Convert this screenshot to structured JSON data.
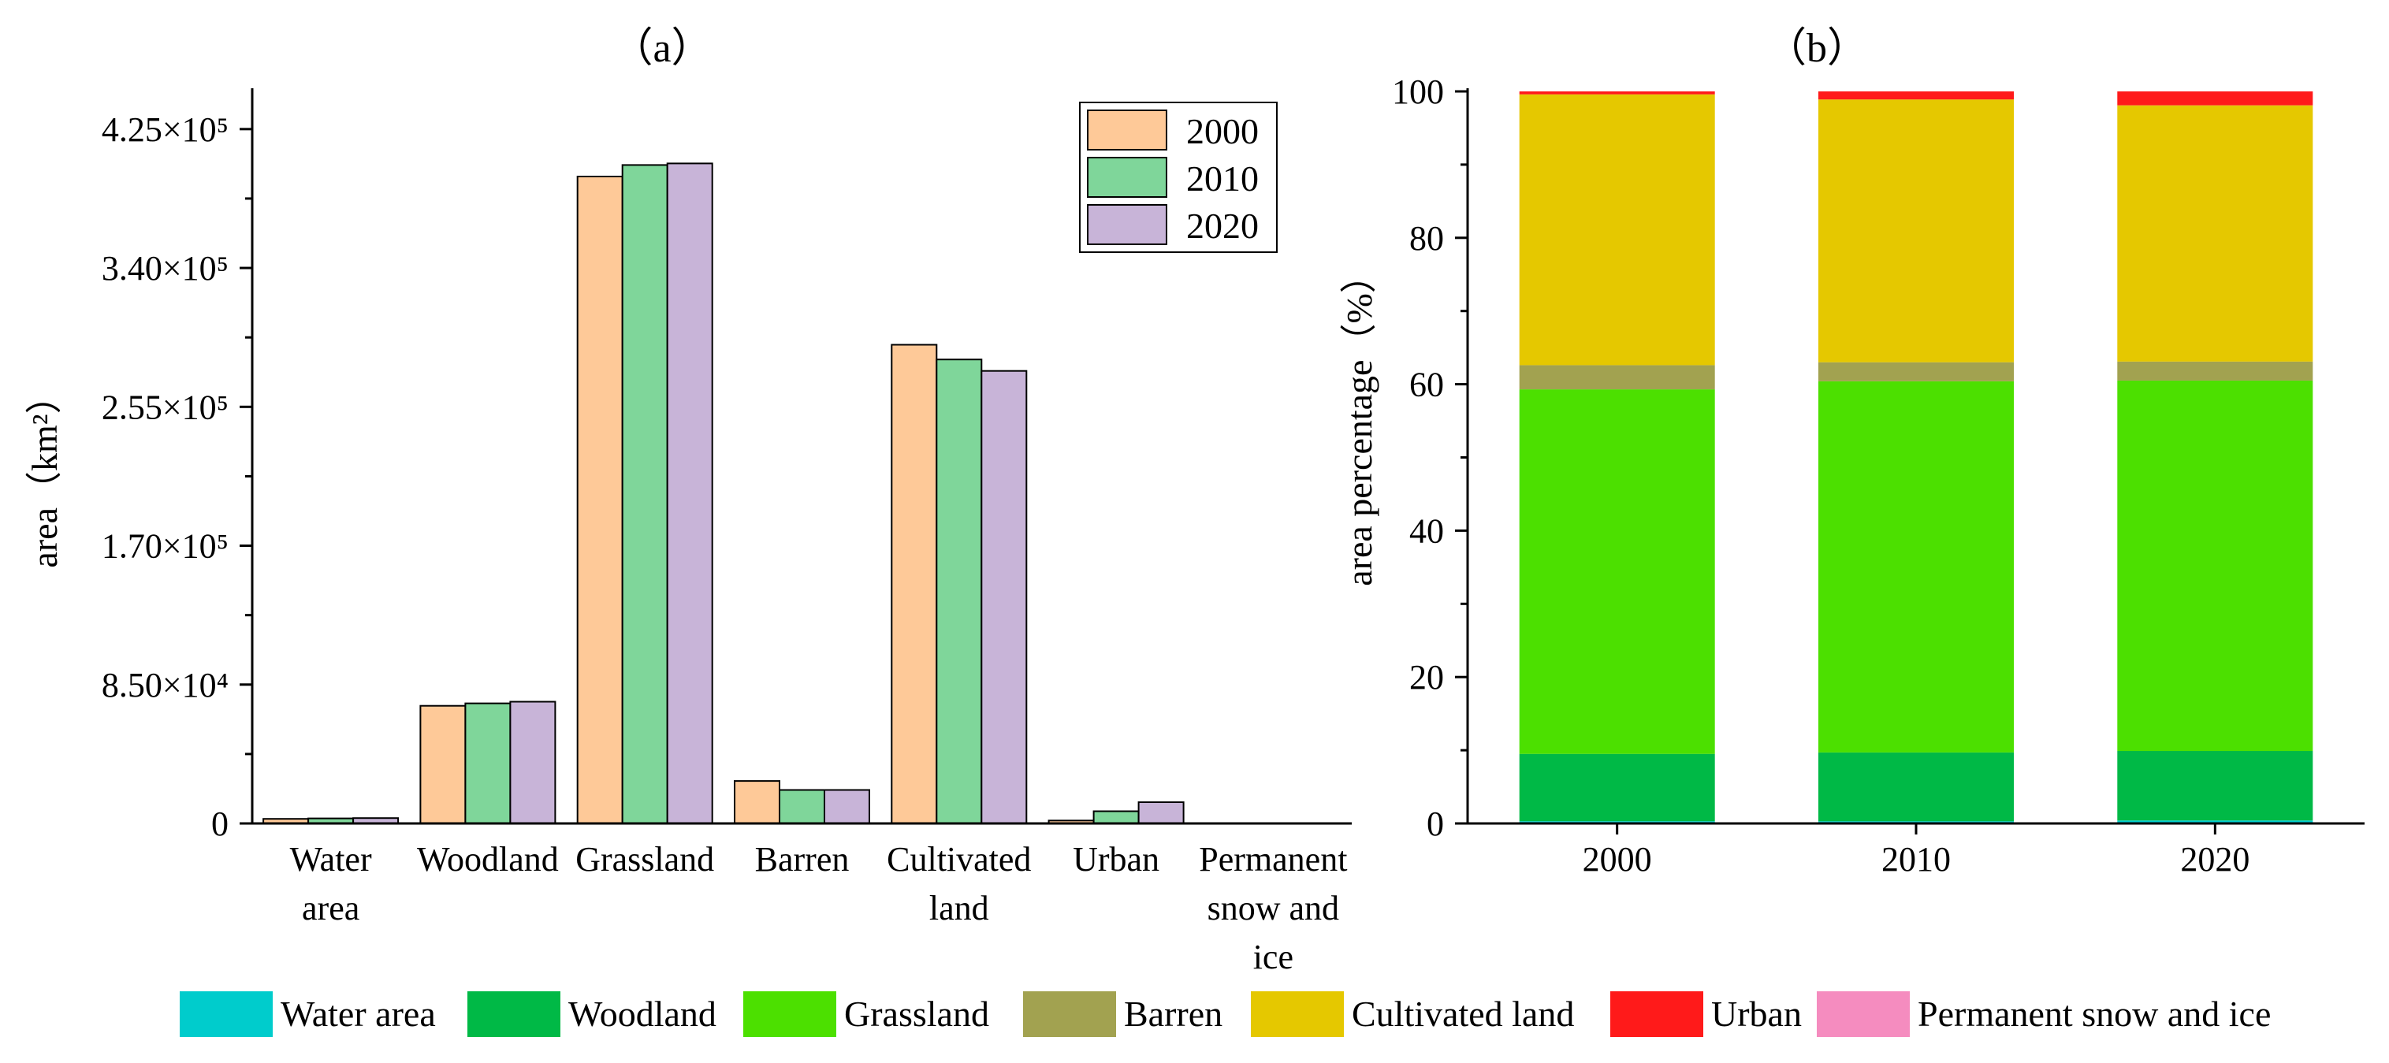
{
  "chart_data": [
    {
      "type": "bar",
      "title": "（a）",
      "xlabel": "",
      "ylabel": "area（km²）",
      "ylim": [
        0,
        450000
      ],
      "yticks": [
        0,
        85000,
        170000,
        255000,
        340000,
        425000
      ],
      "ytick_labels": [
        "0",
        "8.50×10⁴",
        "1.70×10⁵",
        "2.55×10⁵",
        "3.40×10⁵",
        "4.25×10⁵"
      ],
      "categories": [
        "Water area",
        "Woodland",
        "Grassland",
        "Barren",
        "Cultivated land",
        "Urban",
        "Permanent snow and ice"
      ],
      "category_lines": [
        [
          "Water",
          "area"
        ],
        [
          "Woodland"
        ],
        [
          "Grassland"
        ],
        [
          "Barren"
        ],
        [
          "Cultivated",
          "land"
        ],
        [
          "Urban"
        ],
        [
          "Permanent",
          "snow and",
          "ice"
        ]
      ],
      "legend_position": "top-right",
      "series": [
        {
          "name": "2000",
          "color": "#FEC998",
          "values": [
            2800,
            72000,
            396000,
            26000,
            293000,
            1800,
            200
          ]
        },
        {
          "name": "2010",
          "color": "#7FD69A",
          "values": [
            3100,
            73500,
            403000,
            20500,
            284000,
            7500,
            200
          ]
        },
        {
          "name": "2020",
          "color": "#C8B4D8",
          "values": [
            3300,
            74500,
            404000,
            20500,
            277000,
            13000,
            200
          ]
        }
      ]
    },
    {
      "type": "stacked-bar",
      "title": "（b）",
      "xlabel": "",
      "ylabel": "area percentage（%）",
      "ylim": [
        0,
        100
      ],
      "yticks": [
        0,
        20,
        40,
        60,
        80,
        100
      ],
      "ytick_labels": [
        "0",
        "20",
        "40",
        "60",
        "80",
        "100"
      ],
      "categories": [
        "2000",
        "2010",
        "2020"
      ],
      "series": [
        {
          "name": "Water area",
          "color": "#00CCCC",
          "values": [
            0.3,
            0.3,
            0.4
          ]
        },
        {
          "name": "Woodland",
          "color": "#00B946",
          "values": [
            9.2,
            9.4,
            9.5
          ]
        },
        {
          "name": "Grassland",
          "color": "#4CE000",
          "values": [
            49.8,
            50.7,
            50.6
          ]
        },
        {
          "name": "Barren",
          "color": "#A2A250",
          "values": [
            3.3,
            2.6,
            2.6
          ]
        },
        {
          "name": "Cultivated land",
          "color": "#E5C800",
          "values": [
            37.0,
            35.9,
            35.0
          ]
        },
        {
          "name": "Urban",
          "color": "#FF1A1A",
          "values": [
            0.4,
            1.1,
            1.9
          ]
        },
        {
          "name": "Permanent snow and ice",
          "color": "#F58CBF",
          "values": [
            0.0,
            0.0,
            0.0
          ]
        }
      ]
    }
  ],
  "bottom_legend": {
    "items": [
      {
        "label": "Water area",
        "color": "#00CCCC"
      },
      {
        "label": "Woodland",
        "color": "#00B946"
      },
      {
        "label": "Grassland",
        "color": "#4CE000"
      },
      {
        "label": "Barren",
        "color": "#A2A250"
      },
      {
        "label": "Cultivated land",
        "color": "#E5C800"
      },
      {
        "label": "Urban",
        "color": "#FF1A1A"
      },
      {
        "label": "Permanent snow and ice",
        "color": "#F58CBF"
      }
    ]
  }
}
